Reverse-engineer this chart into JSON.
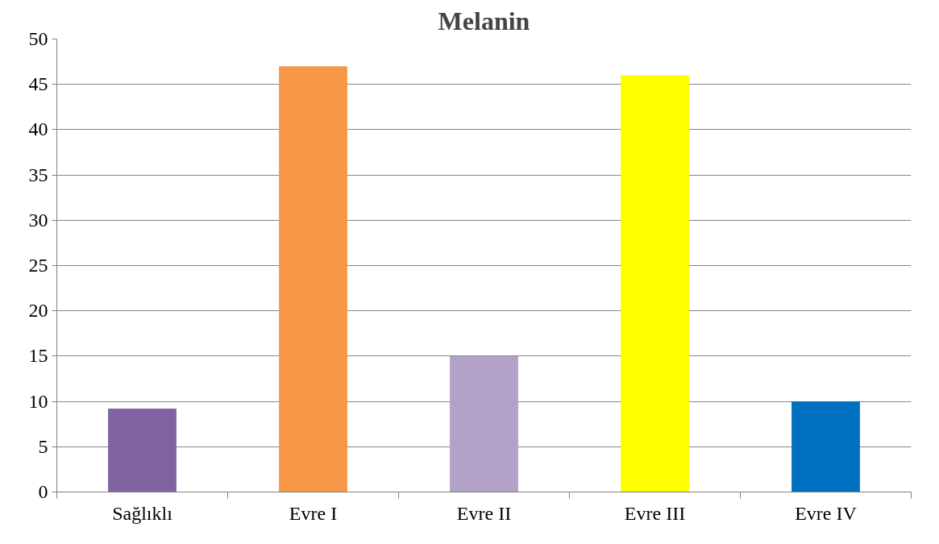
{
  "chart_data": {
    "type": "bar",
    "title": "Melanin",
    "categories": [
      "Sağlıklı",
      "Evre I",
      "Evre II",
      "Evre III",
      "Evre IV"
    ],
    "values": [
      9.2,
      47,
      15,
      46,
      10
    ],
    "colors": [
      "#8064a2",
      "#f79646",
      "#b3a2c7",
      "#ffff00",
      "#0070c0"
    ],
    "ylim": [
      0,
      50
    ],
    "yticks": [
      0,
      5,
      10,
      15,
      20,
      25,
      30,
      35,
      40,
      45,
      50
    ],
    "grid": "y"
  }
}
